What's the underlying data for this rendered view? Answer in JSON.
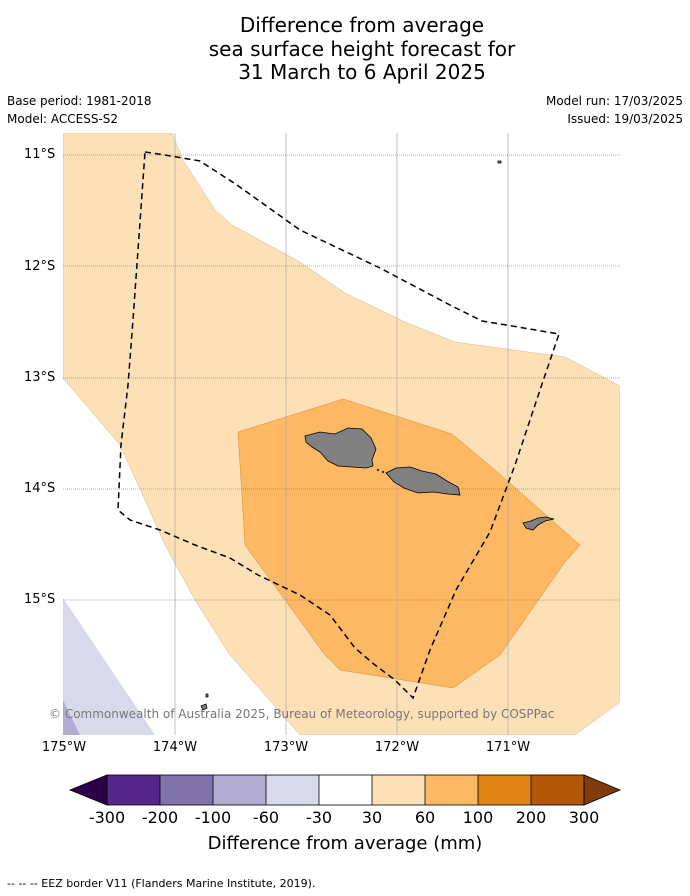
{
  "title": {
    "line1": "Difference from average",
    "line2": "sea surface height forecast for",
    "line3": "31 March to 6 April 2025"
  },
  "meta": {
    "base_period": "Base period: 1981-2018",
    "model": "Model: ACCESS-S2",
    "model_run": "Model run: 17/03/2025",
    "issued": "Issued: 19/03/2025"
  },
  "map": {
    "lat_labels": [
      "11°S",
      "12°S",
      "13°S",
      "14°S",
      "15°S"
    ],
    "lon_labels": [
      "175°W",
      "174°W",
      "173°W",
      "172°W",
      "171°W"
    ],
    "copyright": "© Commonwealth of Australia 2025, Bureau of Meteorology, supported by COSPPac",
    "land_color": "#808080",
    "eez_line_style": "dashed black"
  },
  "colorbar": {
    "label": "Difference from average (mm)",
    "ticks": [
      "-300",
      "-200",
      "-100",
      "-60",
      "-30",
      "30",
      "60",
      "100",
      "200",
      "300"
    ],
    "colors": [
      "#2d004b",
      "#542788",
      "#8073ac",
      "#b2abd2",
      "#d8daeb",
      "#ffffff",
      "#fee0b6",
      "#fdb863",
      "#e08214",
      "#b35806",
      "#7f3b08"
    ]
  },
  "footnote": "--  --  -- EEZ border V11 (Flanders Marine Institute, 2019)."
}
